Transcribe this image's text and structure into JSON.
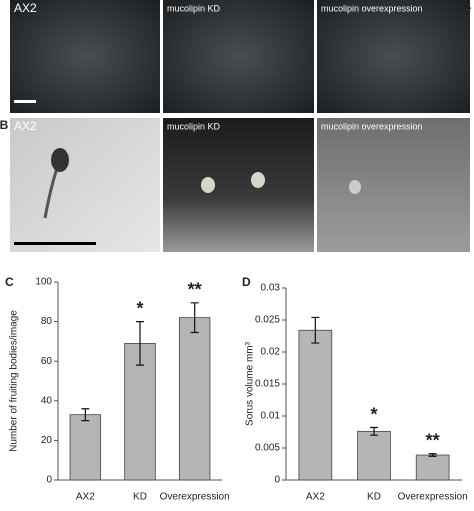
{
  "panels": [
    {
      "letter": "A",
      "images": [
        "AX2",
        "mucolipin KD",
        "mucolipin overexpression"
      ]
    },
    {
      "letter": "B",
      "images": [
        "AX2",
        "mucolipin KD",
        "mucolipin overexpression"
      ]
    }
  ],
  "chart_data": [
    {
      "type": "bar",
      "panel": "C",
      "ylabel": "Number of fruiting bodies/image",
      "categories": [
        "AX2",
        "KD",
        "Overexpression"
      ],
      "values": [
        33,
        69,
        82
      ],
      "errors": [
        3,
        11,
        7.5
      ],
      "annotations": [
        null,
        "*",
        "**"
      ],
      "color": "#b5b5b5",
      "ylim": [
        0,
        100
      ],
      "yticks": [
        0,
        20,
        40,
        60,
        80,
        100
      ]
    },
    {
      "type": "bar",
      "panel": "D",
      "ylabel": "Sorus volume mm³",
      "categories": [
        "AX2",
        "KD",
        "Overexpression"
      ],
      "values": [
        0.0234,
        0.0076,
        0.0039
      ],
      "errors": [
        0.002,
        0.0006,
        0.0002
      ],
      "annotations": [
        null,
        "*",
        "**"
      ],
      "color": "#b5b5b5",
      "ylim": [
        0,
        0.03
      ],
      "yticks": [
        0,
        0.005,
        0.01,
        0.015,
        0.02,
        0.025,
        0.03
      ]
    }
  ]
}
